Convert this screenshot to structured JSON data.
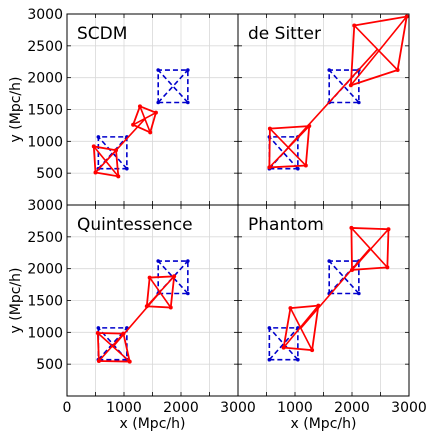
{
  "chart_data": {
    "type": "scatter",
    "layout": "2x2 grid, shared axes",
    "xlabel": "x (Mpc/h)",
    "ylabel": "y (Mpc/h)",
    "xlim": [
      0,
      3000
    ],
    "ylim": [
      0,
      3000
    ],
    "grid": true,
    "xticks": [
      "0",
      "1000",
      "2000",
      "3000"
    ],
    "yticks_top": [
      "500",
      "1000",
      "1500",
      "2000",
      "2500",
      "3000"
    ],
    "yticks_bottom": [
      "500",
      "1000",
      "1500",
      "2000",
      "2500",
      "3000"
    ],
    "colors": {
      "model": "#ff0000",
      "reference": "#0000cc",
      "grid": "#d9d9d9"
    },
    "reference_squares": {
      "style": "dashed",
      "squares": [
        [
          [
            550,
            570
          ],
          [
            1050,
            570
          ],
          [
            1050,
            1070
          ],
          [
            550,
            1070
          ]
        ],
        [
          [
            1600,
            1610
          ],
          [
            2120,
            1610
          ],
          [
            2120,
            2120
          ],
          [
            1600,
            2120
          ]
        ]
      ]
    },
    "panels": [
      {
        "title": "SCDM",
        "squares": [
          [
            [
              470,
              920
            ],
            [
              860,
              860
            ],
            [
              900,
              450
            ],
            [
              500,
              510
            ]
          ],
          [
            [
              1280,
              1550
            ],
            [
              1560,
              1450
            ],
            [
              1460,
              1140
            ],
            [
              1160,
              1260
            ]
          ]
        ]
      },
      {
        "title": "de Sitter",
        "squares": [
          [
            [
              560,
              1200
            ],
            [
              1250,
              1240
            ],
            [
              1190,
              620
            ],
            [
              550,
              590
            ]
          ],
          [
            [
              2040,
              2820
            ],
            [
              2960,
              2960
            ],
            [
              2800,
              2120
            ],
            [
              1980,
              1880
            ]
          ]
        ]
      },
      {
        "title": "Quintessence",
        "squares": [
          [
            [
              540,
              990
            ],
            [
              990,
              980
            ],
            [
              1100,
              540
            ],
            [
              560,
              550
            ]
          ],
          [
            [
              1450,
              1860
            ],
            [
              1880,
              1880
            ],
            [
              1820,
              1390
            ],
            [
              1400,
              1410
            ]
          ]
        ]
      },
      {
        "title": "Phantom",
        "squares": [
          [
            [
              920,
              1380
            ],
            [
              1410,
              1420
            ],
            [
              1300,
              720
            ],
            [
              800,
              760
            ]
          ],
          [
            [
              1990,
              2640
            ],
            [
              2640,
              2620
            ],
            [
              2620,
              2020
            ],
            [
              2000,
              1980
            ]
          ]
        ]
      }
    ]
  }
}
